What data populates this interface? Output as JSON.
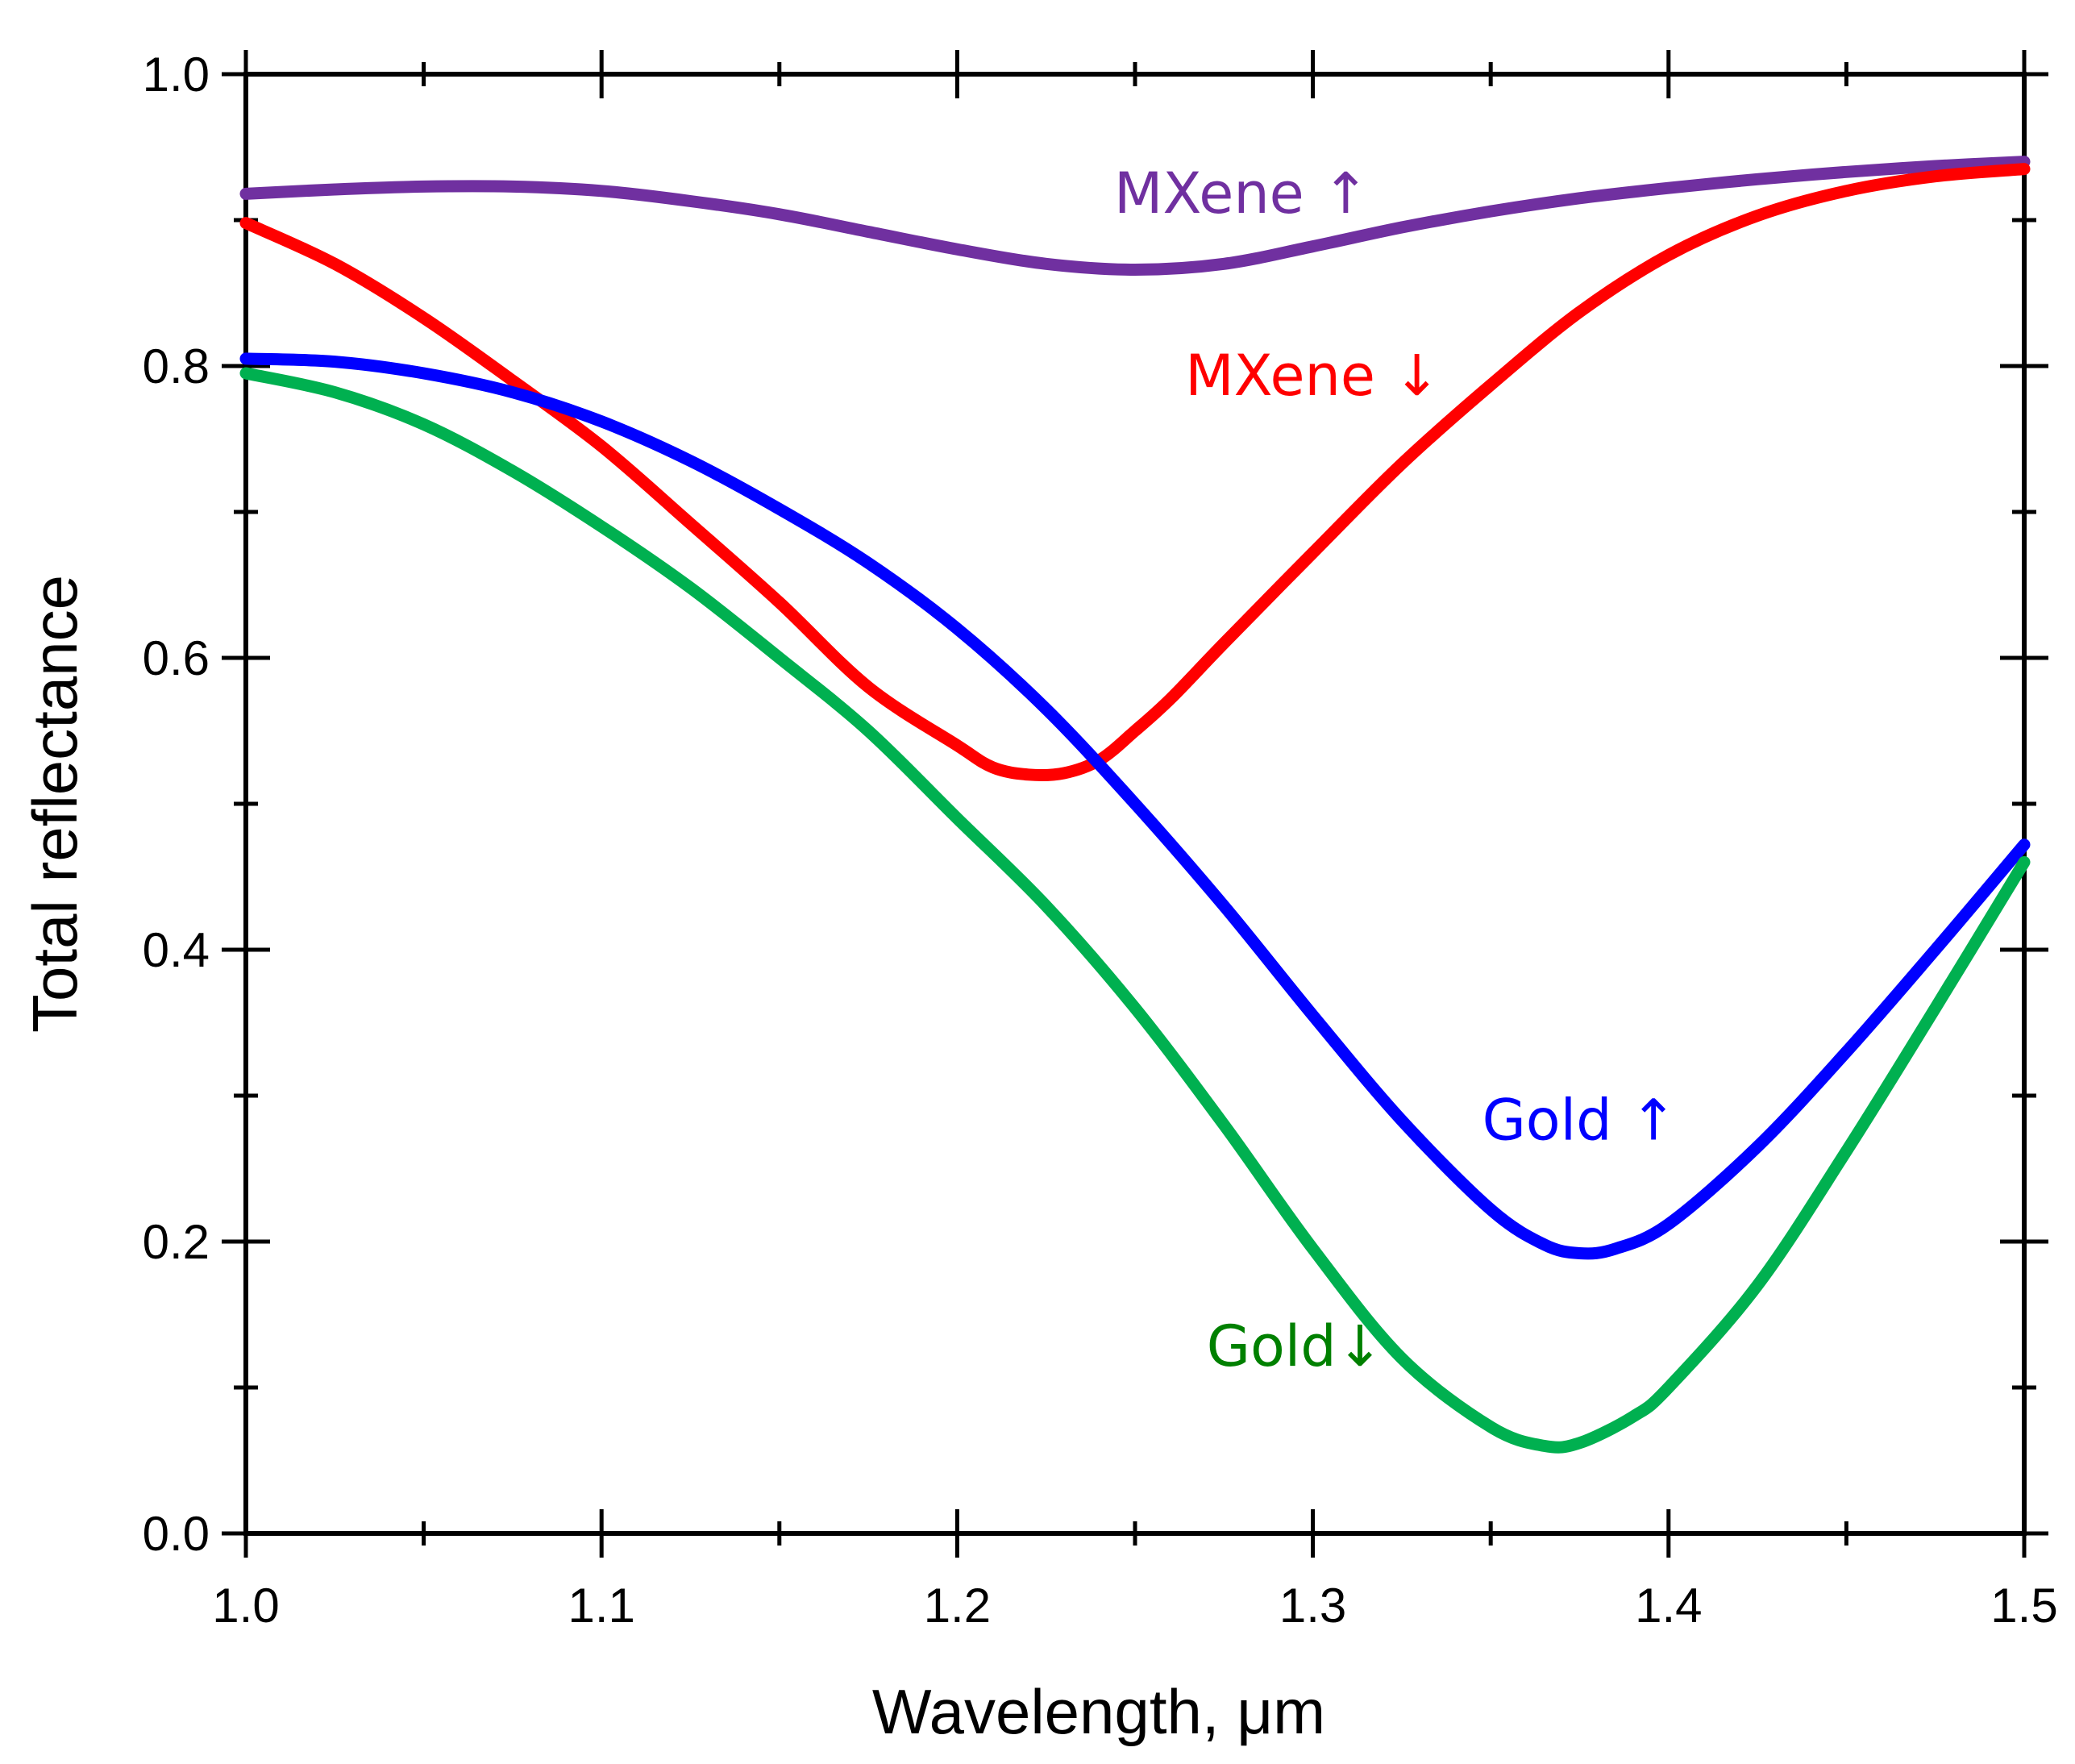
{
  "chart_data": {
    "type": "line",
    "xlabel": "Wavelength, μm",
    "ylabel": "Total reflectance",
    "xlim": [
      1.0,
      1.5
    ],
    "ylim": [
      0.0,
      1.0
    ],
    "x_ticks": [
      1.0,
      1.1,
      1.2,
      1.3,
      1.4,
      1.5
    ],
    "x_tick_labels": [
      "1.0",
      "1.1",
      "1.2",
      "1.3",
      "1.4",
      "1.5"
    ],
    "y_ticks": [
      0.0,
      0.2,
      0.4,
      0.6,
      0.8,
      1.0
    ],
    "y_tick_labels": [
      "0.0",
      "0.2",
      "0.4",
      "0.6",
      "0.8",
      "1.0"
    ],
    "grid": false,
    "series": [
      {
        "name": "MXene ↑",
        "color": "#7030a0",
        "x": [
          1.0,
          1.025,
          1.05,
          1.075,
          1.1,
          1.125,
          1.15,
          1.175,
          1.2,
          1.225,
          1.25,
          1.275,
          1.3,
          1.325,
          1.35,
          1.375,
          1.4,
          1.425,
          1.45,
          1.475,
          1.5
        ],
        "y": [
          0.918,
          0.921,
          0.923,
          0.923,
          0.92,
          0.913,
          0.904,
          0.892,
          0.88,
          0.87,
          0.866,
          0.87,
          0.882,
          0.895,
          0.906,
          0.915,
          0.922,
          0.928,
          0.933,
          0.937,
          0.94
        ]
      },
      {
        "name": "MXene ↓",
        "color": "#ff0000",
        "x": [
          1.0,
          1.025,
          1.05,
          1.075,
          1.1,
          1.125,
          1.15,
          1.175,
          1.2,
          1.21,
          1.22,
          1.23,
          1.24,
          1.25,
          1.26,
          1.275,
          1.3,
          1.325,
          1.35,
          1.375,
          1.4,
          1.425,
          1.45,
          1.475,
          1.5
        ],
        "y": [
          0.898,
          0.87,
          0.833,
          0.79,
          0.745,
          0.692,
          0.638,
          0.58,
          0.54,
          0.525,
          0.52,
          0.521,
          0.53,
          0.55,
          0.572,
          0.61,
          0.672,
          0.733,
          0.787,
          0.837,
          0.876,
          0.903,
          0.92,
          0.93,
          0.935
        ]
      },
      {
        "name": "Gold ↑",
        "color": "#0000ff",
        "x": [
          1.0,
          1.025,
          1.05,
          1.075,
          1.1,
          1.125,
          1.15,
          1.175,
          1.2,
          1.225,
          1.25,
          1.275,
          1.3,
          1.325,
          1.35,
          1.365,
          1.375,
          1.385,
          1.4,
          1.425,
          1.45,
          1.475,
          1.5
        ],
        "y": [
          0.805,
          0.803,
          0.795,
          0.782,
          0.762,
          0.735,
          0.702,
          0.665,
          0.62,
          0.565,
          0.5,
          0.43,
          0.355,
          0.283,
          0.222,
          0.198,
          0.192,
          0.195,
          0.212,
          0.265,
          0.33,
          0.4,
          0.472
        ]
      },
      {
        "name": "Gold↓",
        "color": "#00b050",
        "x": [
          1.0,
          1.025,
          1.05,
          1.075,
          1.1,
          1.125,
          1.15,
          1.175,
          1.2,
          1.225,
          1.25,
          1.275,
          1.3,
          1.325,
          1.35,
          1.365,
          1.375,
          1.39,
          1.4,
          1.425,
          1.45,
          1.475,
          1.5
        ],
        "y": [
          0.795,
          0.782,
          0.76,
          0.728,
          0.69,
          0.648,
          0.6,
          0.55,
          0.49,
          0.43,
          0.36,
          0.28,
          0.195,
          0.12,
          0.073,
          0.06,
          0.062,
          0.08,
          0.1,
          0.17,
          0.262,
          0.36,
          0.46
        ]
      }
    ],
    "annotations": [
      {
        "text": "MXene ↑",
        "color": "#7030a0",
        "x": 1.28,
        "y": 0.905,
        "anchor": "middle"
      },
      {
        "text": "MXene ↓",
        "color": "#ff0000",
        "x": 1.3,
        "y": 0.78,
        "anchor": "middle"
      },
      {
        "text": "Gold ↑",
        "color": "#0000ff",
        "x": 1.375,
        "y": 0.27,
        "anchor": "middle"
      },
      {
        "text": "Gold↓",
        "color": "#008000",
        "x": 1.295,
        "y": 0.115,
        "anchor": "middle"
      }
    ]
  }
}
